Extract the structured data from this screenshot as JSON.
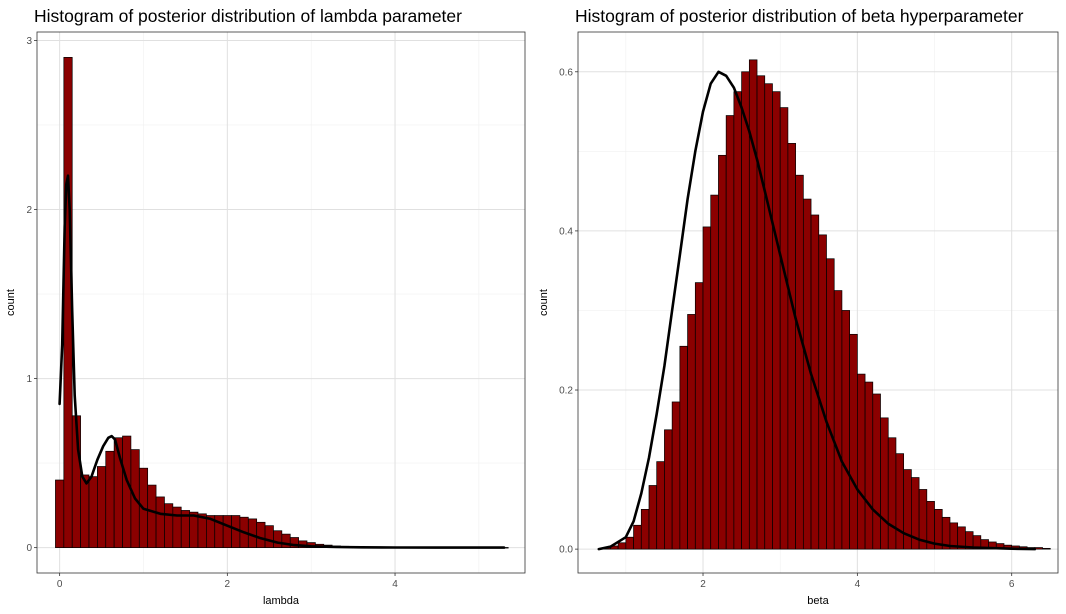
{
  "chart_data": [
    {
      "type": "bar",
      "title": "Histogram of posterior distribution of lambda parameter",
      "xlabel": "lambda",
      "ylabel": "count",
      "xlim": [
        -0.27,
        5.55
      ],
      "ylim": [
        -0.15,
        3.05
      ],
      "x_ticks": [
        0,
        2,
        4
      ],
      "y_ticks": [
        0,
        1,
        2,
        3
      ],
      "grid": true,
      "bin_width": 0.1,
      "bin_start": -0.05,
      "bar_color": "#8b0000",
      "outline_color": "#000000",
      "values": [
        0.4,
        2.9,
        0.78,
        0.43,
        0.42,
        0.48,
        0.57,
        0.65,
        0.66,
        0.58,
        0.47,
        0.37,
        0.3,
        0.26,
        0.24,
        0.22,
        0.21,
        0.2,
        0.19,
        0.19,
        0.19,
        0.19,
        0.18,
        0.17,
        0.15,
        0.13,
        0.1,
        0.08,
        0.06,
        0.04,
        0.03,
        0.02,
        0.015,
        0.01,
        0.008,
        0.006,
        0.005,
        0.004,
        0.003,
        0.003,
        0.002,
        0.002,
        0.002,
        0.001,
        0.001,
        0.001,
        0.001,
        0.001,
        0.001,
        0.001,
        0.001,
        0.001,
        0.001,
        0.001
      ],
      "density": {
        "x": [
          0.0,
          0.03,
          0.06,
          0.08,
          0.1,
          0.12,
          0.15,
          0.18,
          0.22,
          0.27,
          0.32,
          0.38,
          0.45,
          0.52,
          0.58,
          0.62,
          0.66,
          0.72,
          0.8,
          0.9,
          1.0,
          1.2,
          1.4,
          1.6,
          1.8,
          2.0,
          2.2,
          2.4,
          2.6,
          2.8,
          3.0,
          3.3,
          3.6,
          4.0,
          4.5,
          5.0,
          5.3
        ],
        "y": [
          0.85,
          1.2,
          1.9,
          2.15,
          2.2,
          2.0,
          1.4,
          0.9,
          0.58,
          0.42,
          0.38,
          0.42,
          0.52,
          0.6,
          0.65,
          0.66,
          0.64,
          0.53,
          0.4,
          0.29,
          0.23,
          0.2,
          0.19,
          0.19,
          0.17,
          0.13,
          0.09,
          0.055,
          0.03,
          0.015,
          0.008,
          0.004,
          0.002,
          0.001,
          0.0005,
          0.0,
          0.0
        ]
      }
    },
    {
      "type": "bar",
      "title": "Histogram of posterior distribution of beta hyperparameter",
      "xlabel": "beta",
      "ylabel": "count",
      "xlim": [
        0.38,
        6.6
      ],
      "ylim": [
        -0.03,
        0.65
      ],
      "x_ticks": [
        2,
        4,
        6
      ],
      "y_ticks": [
        0.0,
        0.2,
        0.4,
        0.6
      ],
      "y_tick_labels": [
        "0.0",
        "0.2",
        "0.4",
        "0.6"
      ],
      "grid": true,
      "bin_width": 0.1,
      "bin_start": 0.7,
      "bar_color": "#8b0000",
      "outline_color": "#000000",
      "values": [
        0.002,
        0.004,
        0.008,
        0.015,
        0.03,
        0.05,
        0.08,
        0.11,
        0.15,
        0.185,
        0.255,
        0.295,
        0.335,
        0.405,
        0.445,
        0.495,
        0.545,
        0.575,
        0.6,
        0.615,
        0.595,
        0.585,
        0.575,
        0.555,
        0.51,
        0.47,
        0.44,
        0.42,
        0.395,
        0.365,
        0.325,
        0.3,
        0.27,
        0.22,
        0.21,
        0.195,
        0.165,
        0.14,
        0.12,
        0.1,
        0.09,
        0.075,
        0.06,
        0.05,
        0.04,
        0.033,
        0.028,
        0.022,
        0.017,
        0.012,
        0.009,
        0.007,
        0.005,
        0.004,
        0.003,
        0.002,
        0.002,
        0.001
      ],
      "density": {
        "x": [
          0.65,
          0.8,
          1.0,
          1.1,
          1.2,
          1.3,
          1.4,
          1.5,
          1.6,
          1.7,
          1.8,
          1.9,
          2.0,
          2.1,
          2.2,
          2.3,
          2.4,
          2.5,
          2.6,
          2.7,
          2.8,
          2.9,
          3.0,
          3.2,
          3.4,
          3.6,
          3.8,
          4.0,
          4.2,
          4.4,
          4.6,
          4.8,
          5.0,
          5.2,
          5.5,
          6.0,
          6.3
        ],
        "y": [
          0.0,
          0.003,
          0.015,
          0.035,
          0.07,
          0.115,
          0.17,
          0.23,
          0.3,
          0.37,
          0.44,
          0.5,
          0.55,
          0.585,
          0.6,
          0.595,
          0.58,
          0.555,
          0.525,
          0.49,
          0.45,
          0.41,
          0.37,
          0.29,
          0.22,
          0.16,
          0.11,
          0.075,
          0.05,
          0.032,
          0.02,
          0.012,
          0.007,
          0.004,
          0.002,
          0.0005,
          0.0
        ]
      }
    }
  ]
}
